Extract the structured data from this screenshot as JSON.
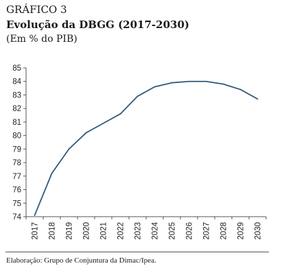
{
  "header": {
    "label": "GRÁFICO 3",
    "title": "Evolução da DBGG (2017-2030)",
    "subtitle": "(Em % do PIB)"
  },
  "footer": {
    "source": "Elaboração: Grupo de Conjuntura da Dimac/Ipea."
  },
  "colors": {
    "line": "#2f5878",
    "axis": "#555555"
  },
  "chart_data": {
    "type": "line",
    "title": "Evolução da DBGG (2017-2030)",
    "ylabel": "",
    "xlabel": "",
    "grid": false,
    "legend": "none",
    "ylim": [
      74,
      85
    ],
    "yticks": [
      74,
      75,
      76,
      77,
      78,
      79,
      80,
      81,
      82,
      83,
      84,
      85
    ],
    "categories": [
      "2017",
      "2018",
      "2019",
      "2020",
      "2021",
      "2022",
      "2023",
      "2024",
      "2025",
      "2026",
      "2027",
      "2028",
      "2029",
      "2030"
    ],
    "series": [
      {
        "values": [
          74.1,
          77.2,
          79.0,
          80.2,
          80.9,
          81.6,
          82.9,
          83.6,
          83.9,
          84.0,
          84.0,
          83.8,
          83.4,
          82.7
        ]
      }
    ]
  }
}
